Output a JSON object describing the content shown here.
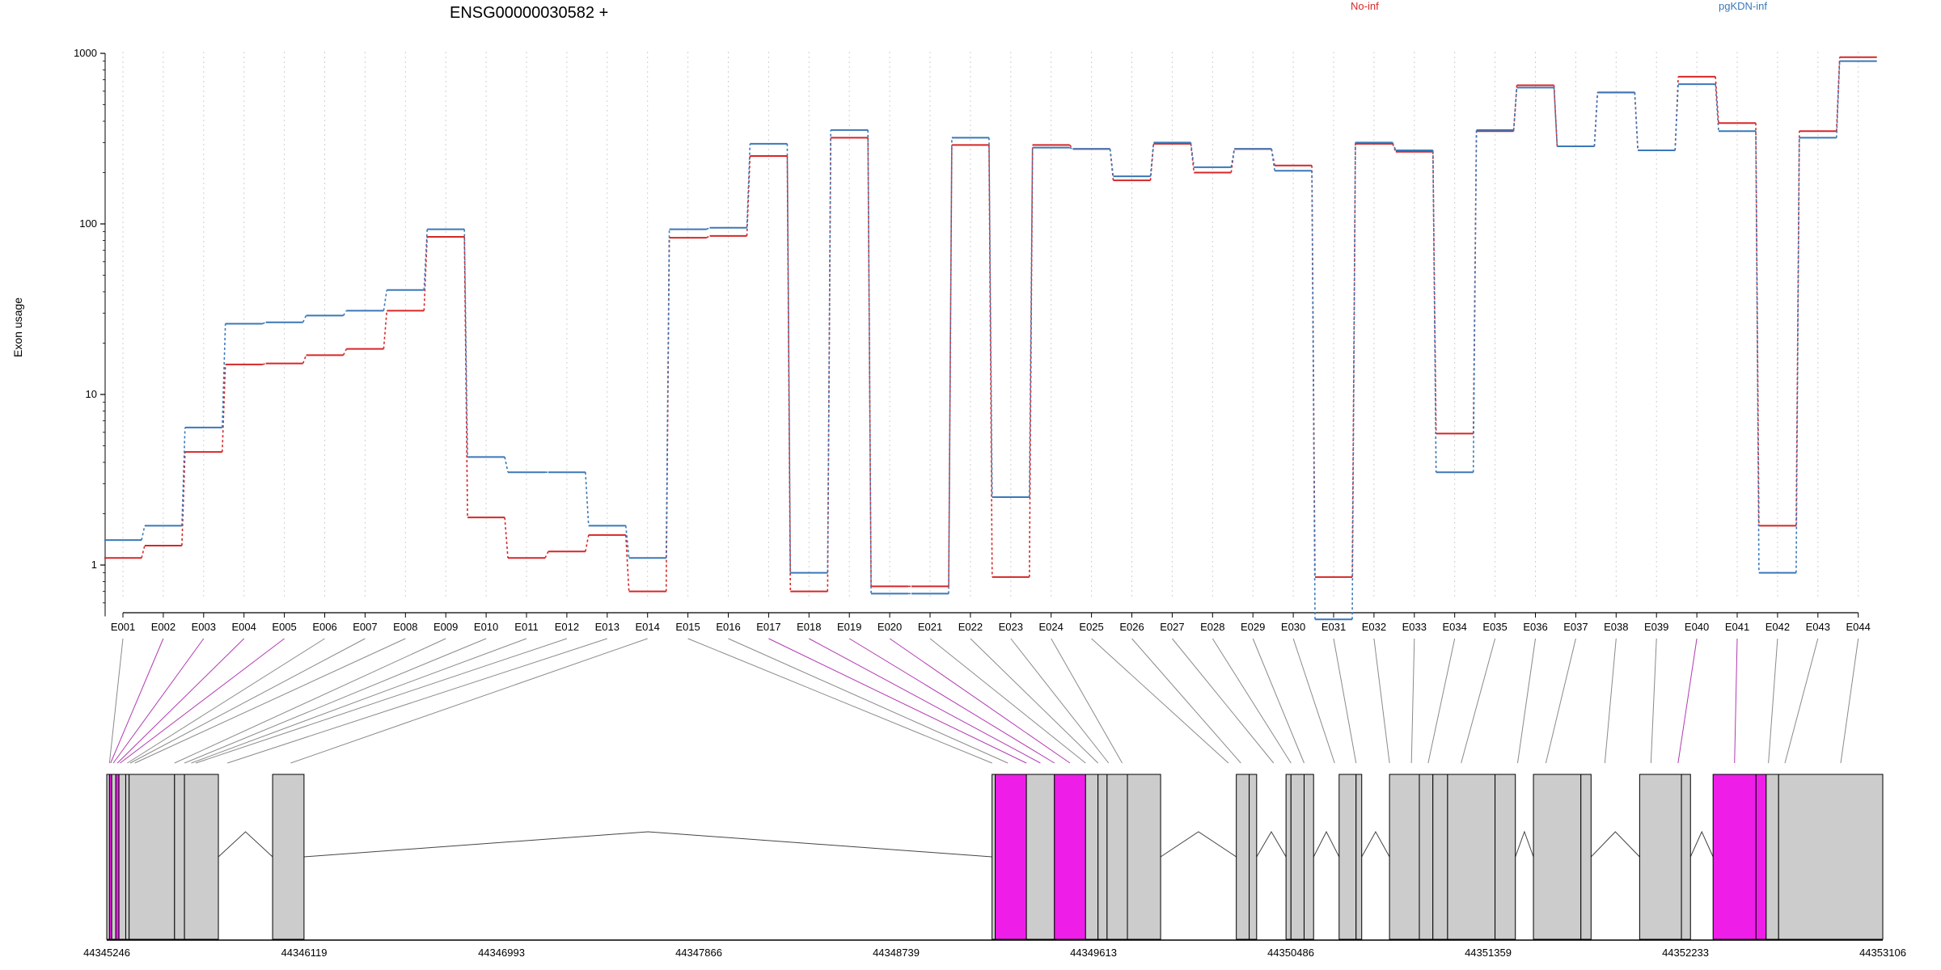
{
  "chart_data": {
    "type": "line",
    "title": "ENSG00000030582 +",
    "ylabel": "Exon usage",
    "yscale": "log",
    "ylim": [
      0.5,
      1000
    ],
    "yticks": [
      1,
      10,
      100,
      1000
    ],
    "ytick_labels": [
      "1",
      "10",
      "100",
      "1000"
    ],
    "grid": "vertical dotted per exon",
    "legend_placement": "top",
    "categories": [
      "E001",
      "E002",
      "E003",
      "E004",
      "E005",
      "E006",
      "E007",
      "E008",
      "E009",
      "E010",
      "E011",
      "E012",
      "E013",
      "E014",
      "E015",
      "E016",
      "E017",
      "E018",
      "E019",
      "E020",
      "E021",
      "E022",
      "E023",
      "E024",
      "E025",
      "E026",
      "E027",
      "E028",
      "E029",
      "E030",
      "E031",
      "E032",
      "E033",
      "E034",
      "E035",
      "E036",
      "E037",
      "E038",
      "E039",
      "E040",
      "E041",
      "E042",
      "E043",
      "E044"
    ],
    "series": [
      {
        "name": "No-inf",
        "color": "#d62728",
        "values": [
          1.1,
          1.3,
          4.6,
          15,
          15.2,
          17,
          18.5,
          31,
          84,
          1.9,
          1.1,
          1.2,
          1.5,
          0.7,
          83,
          85,
          250,
          0.7,
          320,
          0.75,
          0.75,
          290,
          0.85,
          290,
          275,
          180,
          295,
          200,
          275,
          220,
          0.85,
          295,
          265,
          5.9,
          350,
          650,
          285,
          590,
          270,
          730,
          390,
          1.7,
          350,
          950
        ]
      },
      {
        "name": "pgKDN-inf",
        "color": "#3a78b8",
        "values": [
          1.4,
          1.7,
          6.4,
          26,
          26.5,
          29,
          31,
          41,
          93,
          4.3,
          3.5,
          3.5,
          1.7,
          1.1,
          93,
          95,
          295,
          0.9,
          355,
          0.68,
          0.68,
          320,
          2.5,
          280,
          275,
          190,
          300,
          215,
          275,
          205,
          0.48,
          300,
          270,
          3.5,
          355,
          630,
          285,
          590,
          270,
          660,
          350,
          0.9,
          320,
          900
        ]
      }
    ],
    "genomic_axis": {
      "tick_labels": [
        "44345246",
        "44346119",
        "44346993",
        "44347866",
        "44348739",
        "44349613",
        "44350486",
        "44351359",
        "44352233",
        "44353106"
      ],
      "range": [
        44345246,
        44353106
      ]
    },
    "gene_model": {
      "exons": [
        {
          "start": 44345246,
          "end": 44345258,
          "hl": false
        },
        {
          "start": 44345258,
          "end": 44345268,
          "hl": true
        },
        {
          "start": 44345268,
          "end": 44345286,
          "hl": false
        },
        {
          "start": 44345286,
          "end": 44345300,
          "hl": true
        },
        {
          "start": 44345300,
          "end": 44345330,
          "hl": false
        },
        {
          "start": 44345330,
          "end": 44345345,
          "hl": false
        },
        {
          "start": 44345345,
          "end": 44345546,
          "hl": false
        },
        {
          "start": 44345546,
          "end": 44345590,
          "hl": false
        },
        {
          "start": 44345590,
          "end": 44345740,
          "hl": false
        },
        {
          "start": 44345980,
          "end": 44346119,
          "hl": false
        },
        {
          "start": 44349164,
          "end": 44349178,
          "hl": false
        },
        {
          "start": 44349178,
          "end": 44349316,
          "hl": true
        },
        {
          "start": 44349316,
          "end": 44349440,
          "hl": false
        },
        {
          "start": 44349440,
          "end": 44349578,
          "hl": true
        },
        {
          "start": 44349578,
          "end": 44349633,
          "hl": false
        },
        {
          "start": 44349633,
          "end": 44349673,
          "hl": false
        },
        {
          "start": 44349673,
          "end": 44349763,
          "hl": false
        },
        {
          "start": 44349763,
          "end": 44349910,
          "hl": false
        },
        {
          "start": 44350245,
          "end": 44350302,
          "hl": false
        },
        {
          "start": 44350302,
          "end": 44350335,
          "hl": false
        },
        {
          "start": 44350465,
          "end": 44350487,
          "hl": false
        },
        {
          "start": 44350487,
          "end": 44350545,
          "hl": false
        },
        {
          "start": 44350545,
          "end": 44350587,
          "hl": false
        },
        {
          "start": 44350700,
          "end": 44350775,
          "hl": false
        },
        {
          "start": 44350775,
          "end": 44350800,
          "hl": false
        },
        {
          "start": 44350923,
          "end": 44351055,
          "hl": false
        },
        {
          "start": 44351055,
          "end": 44351115,
          "hl": false
        },
        {
          "start": 44351115,
          "end": 44351180,
          "hl": false
        },
        {
          "start": 44351180,
          "end": 44351390,
          "hl": false
        },
        {
          "start": 44351390,
          "end": 44351480,
          "hl": false
        },
        {
          "start": 44351560,
          "end": 44351770,
          "hl": false
        },
        {
          "start": 44351770,
          "end": 44351815,
          "hl": false
        },
        {
          "start": 44352030,
          "end": 44352215,
          "hl": false
        },
        {
          "start": 44352215,
          "end": 44352255,
          "hl": false
        },
        {
          "start": 44352355,
          "end": 44352545,
          "hl": true
        },
        {
          "start": 44352545,
          "end": 44352590,
          "hl": true
        },
        {
          "start": 44352590,
          "end": 44352645,
          "hl": false
        },
        {
          "start": 44352645,
          "end": 44353106,
          "hl": false
        }
      ],
      "introns": [
        [
          44345740,
          44345980
        ],
        [
          44346119,
          44349164
        ],
        [
          44349910,
          44350245
        ],
        [
          44350335,
          44350465
        ],
        [
          44350587,
          44350700
        ],
        [
          44350800,
          44350923
        ],
        [
          44351480,
          44351560
        ],
        [
          44351815,
          44352030
        ],
        [
          44352255,
          44352355
        ]
      ],
      "exon_to_gene": [
        44345258,
        44345263,
        44345275,
        44345293,
        44345305,
        44345337,
        44345350,
        44345370,
        44345546,
        44345590,
        44345620,
        44345640,
        44345780,
        44346060,
        44349164,
        44349234,
        44349316,
        44349378,
        44349440,
        44349509,
        44349578,
        44349633,
        44349680,
        44349740,
        44350210,
        44350265,
        44350410,
        44350487,
        44350545,
        44350680,
        44350775,
        44350923,
        44351020,
        44351094,
        44351240,
        44351490,
        44351615,
        44351876,
        44352080,
        44352200,
        44352450,
        44352600,
        44352673,
        44352920
      ],
      "highlighted_exons": [
        "E002",
        "E003",
        "E004",
        "E005",
        "E017",
        "E018",
        "E019",
        "E020",
        "E040",
        "E041"
      ]
    }
  }
}
